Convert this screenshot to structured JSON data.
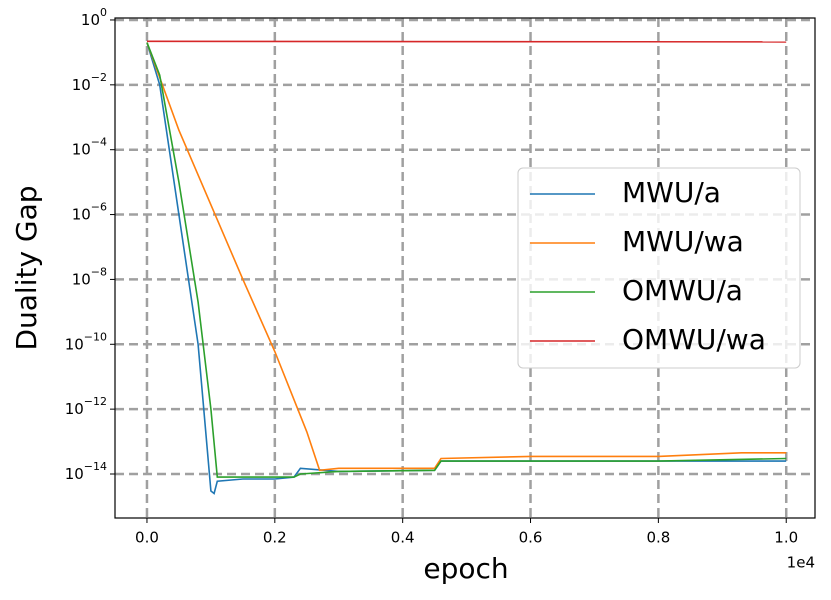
{
  "chart_data": {
    "type": "line",
    "x_label": "epoch",
    "y_label": "Duality Gap",
    "x_offset_label": "1e4",
    "log_y": true,
    "grid": true,
    "legend_position": "right",
    "xlim": [
      -0.05,
      1.045
    ],
    "ylim": [
      4.4e-16,
      1.15
    ],
    "xticks": [
      {
        "value": 0,
        "label": "0.0"
      },
      0.2,
      0.4,
      0.6,
      0.8,
      {
        "value": 1,
        "label": "1.0"
      }
    ],
    "yticks": [
      {
        "value": 1,
        "label": "10",
        "exponent": "0"
      },
      {
        "value": 0.01,
        "label": "10",
        "exponent": "−2"
      },
      {
        "value": 0.0001,
        "label": "10",
        "exponent": "−4"
      },
      {
        "value": 1e-06,
        "label": "10",
        "exponent": "−6"
      },
      {
        "value": 1e-08,
        "label": "10",
        "exponent": "−8"
      },
      {
        "value": 1e-10,
        "label": "10",
        "exponent": "−10"
      },
      {
        "value": 1e-12,
        "label": "10",
        "exponent": "−12"
      },
      {
        "value": 1e-14,
        "label": "10",
        "exponent": "−14"
      }
    ],
    "series": [
      {
        "name": "MWU/a",
        "color": "#1f77b4",
        "x": [
          0,
          0.02,
          0.05,
          0.08,
          0.1,
          0.105,
          0.11,
          0.15,
          0.2,
          0.23,
          0.24,
          0.3,
          0.45,
          0.46,
          0.6,
          0.8,
          1.0
        ],
        "values": [
          0.2,
          0.01,
          1e-06,
          1e-10,
          3e-15,
          2.5e-15,
          6e-15,
          7e-15,
          7e-15,
          8e-15,
          1.5e-14,
          1.2e-14,
          1.3e-14,
          2.5e-14,
          2.5e-14,
          2.5e-14,
          2.5e-14
        ]
      },
      {
        "name": "MWU/wa",
        "color": "#ff7f0e",
        "x": [
          0,
          0.05,
          0.1,
          0.15,
          0.2,
          0.25,
          0.27,
          0.3,
          0.45,
          0.46,
          0.6,
          0.8,
          0.93,
          1.0
        ],
        "values": [
          0.2,
          0.0004,
          2e-06,
          1e-08,
          6e-11,
          2e-13,
          1.3e-14,
          1.5e-14,
          1.5e-14,
          3e-14,
          3.5e-14,
          3.5e-14,
          4.5e-14,
          4.5e-14
        ]
      },
      {
        "name": "OMWU/a",
        "color": "#2ca02c",
        "x": [
          0,
          0.02,
          0.05,
          0.08,
          0.1,
          0.11,
          0.15,
          0.2,
          0.23,
          0.24,
          0.3,
          0.45,
          0.46,
          0.6,
          0.8,
          1.0
        ],
        "values": [
          0.2,
          0.02,
          1e-05,
          2e-09,
          1e-12,
          8e-15,
          8e-15,
          8e-15,
          8e-15,
          1e-14,
          1.2e-14,
          1.3e-14,
          2.5e-14,
          2.5e-14,
          2.5e-14,
          3e-14
        ]
      },
      {
        "name": "OMWU/wa",
        "color": "#d62728",
        "x": [
          0,
          1.0
        ],
        "values": [
          0.22,
          0.21
        ]
      }
    ]
  }
}
